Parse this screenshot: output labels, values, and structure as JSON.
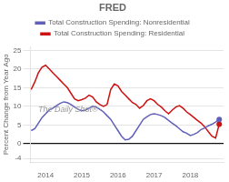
{
  "chart_data": {
    "type": "line",
    "title": "FRED",
    "ylabel": "Percent Change from Year Ago",
    "annotations": [
      "The Daily Shot®"
    ],
    "legend": "top",
    "grid": "y",
    "xlim": [
      2013.58,
      2018.92
    ],
    "xticks": [
      2014,
      2015,
      2016,
      2017,
      2018
    ],
    "ylim": [
      -5,
      26
    ],
    "yticks": [
      -4,
      0,
      5,
      10,
      15,
      20,
      25
    ],
    "x": [
      2013.6,
      2013.7,
      2013.8,
      2013.9,
      2014.0,
      2014.1,
      2014.2,
      2014.3,
      2014.4,
      2014.5,
      2014.6,
      2014.7,
      2014.8,
      2014.9,
      2015.0,
      2015.1,
      2015.2,
      2015.3,
      2015.4,
      2015.5,
      2015.6,
      2015.7,
      2015.8,
      2015.9,
      2016.0,
      2016.1,
      2016.2,
      2016.3,
      2016.4,
      2016.5,
      2016.6,
      2016.7,
      2016.8,
      2016.9,
      2017.0,
      2017.1,
      2017.2,
      2017.3,
      2017.4,
      2017.5,
      2017.6,
      2017.7,
      2017.8,
      2017.9,
      2018.0,
      2018.1,
      2018.2,
      2018.3,
      2018.4,
      2018.5,
      2018.6,
      2018.7,
      2018.8
    ],
    "series": [
      {
        "name": "Total Construction Spending: Nonresidential",
        "color": "#6060bb",
        "values": [
          3.5,
          4.0,
          5.5,
          7.0,
          8.0,
          9.0,
          9.5,
          10.2,
          10.8,
          11.2,
          11.0,
          10.5,
          9.8,
          9.2,
          8.8,
          9.0,
          9.5,
          10.0,
          9.8,
          9.2,
          8.5,
          7.5,
          6.5,
          5.0,
          3.5,
          2.0,
          1.0,
          1.2,
          2.0,
          3.5,
          5.0,
          6.5,
          7.2,
          7.8,
          8.0,
          7.8,
          7.5,
          7.0,
          6.2,
          5.5,
          4.8,
          4.0,
          3.2,
          2.8,
          2.2,
          2.5,
          3.0,
          3.8,
          4.2,
          4.8,
          5.2,
          5.8,
          6.5
        ]
      },
      {
        "name": "Total Construction Spending: Residential",
        "color": "#cc1111",
        "values": [
          14.5,
          16.5,
          19.0,
          20.5,
          21.0,
          20.0,
          19.0,
          18.0,
          17.0,
          16.0,
          15.0,
          13.5,
          12.0,
          11.5,
          11.8,
          12.2,
          13.0,
          12.5,
          11.2,
          10.5,
          10.0,
          10.5,
          14.5,
          16.0,
          15.5,
          14.0,
          13.0,
          12.0,
          11.0,
          10.5,
          9.5,
          10.2,
          11.5,
          12.0,
          11.5,
          10.5,
          9.8,
          8.8,
          8.0,
          9.0,
          9.8,
          10.2,
          9.5,
          8.5,
          7.8,
          7.0,
          6.2,
          5.5,
          4.5,
          3.2,
          2.0,
          1.5,
          5.2
        ]
      }
    ]
  }
}
